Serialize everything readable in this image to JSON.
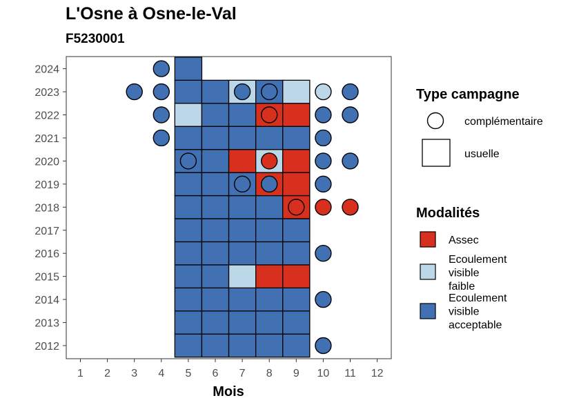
{
  "colors": {
    "Assec": "#d7301f",
    "Ecoulement visible faible": "#bcd7e7",
    "Ecoulement visible acceptable": "#4271b3"
  },
  "chart_data": {
    "type": "heatmap",
    "title": "L'Osne à Osne-le-Val",
    "subtitle": "F5230001",
    "xlabel": "Mois",
    "ylabel": "",
    "x_ticks": [
      1,
      2,
      3,
      4,
      5,
      6,
      7,
      8,
      9,
      10,
      11,
      12
    ],
    "y_ticks": [
      2012,
      2013,
      2014,
      2015,
      2016,
      2017,
      2018,
      2019,
      2020,
      2021,
      2022,
      2023,
      2024
    ],
    "grid": false,
    "legend_position": "right",
    "legend": {
      "shape_title": "Type campagne",
      "shape_entries": [
        "complémentaire",
        "usuelle"
      ],
      "fill_title": "Modalités",
      "fill_entries": [
        {
          "key": "Assec",
          "lines": [
            "Assec"
          ]
        },
        {
          "key": "Ecoulement visible faible",
          "lines": [
            "Ecoulement",
            "visible",
            "faible"
          ]
        },
        {
          "key": "Ecoulement visible acceptable",
          "lines": [
            "Ecoulement",
            "visible",
            "acceptable"
          ]
        }
      ]
    },
    "usuelle": [
      {
        "year": 2012,
        "month": 5,
        "value": "Ecoulement visible acceptable"
      },
      {
        "year": 2012,
        "month": 6,
        "value": "Ecoulement visible acceptable"
      },
      {
        "year": 2012,
        "month": 7,
        "value": "Ecoulement visible acceptable"
      },
      {
        "year": 2012,
        "month": 8,
        "value": "Ecoulement visible acceptable"
      },
      {
        "year": 2012,
        "month": 9,
        "value": "Ecoulement visible acceptable"
      },
      {
        "year": 2013,
        "month": 5,
        "value": "Ecoulement visible acceptable"
      },
      {
        "year": 2013,
        "month": 6,
        "value": "Ecoulement visible acceptable"
      },
      {
        "year": 2013,
        "month": 7,
        "value": "Ecoulement visible acceptable"
      },
      {
        "year": 2013,
        "month": 8,
        "value": "Ecoulement visible acceptable"
      },
      {
        "year": 2013,
        "month": 9,
        "value": "Ecoulement visible acceptable"
      },
      {
        "year": 2014,
        "month": 5,
        "value": "Ecoulement visible acceptable"
      },
      {
        "year": 2014,
        "month": 6,
        "value": "Ecoulement visible acceptable"
      },
      {
        "year": 2014,
        "month": 7,
        "value": "Ecoulement visible acceptable"
      },
      {
        "year": 2014,
        "month": 8,
        "value": "Ecoulement visible acceptable"
      },
      {
        "year": 2014,
        "month": 9,
        "value": "Ecoulement visible acceptable"
      },
      {
        "year": 2015,
        "month": 5,
        "value": "Ecoulement visible acceptable"
      },
      {
        "year": 2015,
        "month": 6,
        "value": "Ecoulement visible acceptable"
      },
      {
        "year": 2015,
        "month": 7,
        "value": "Ecoulement visible faible"
      },
      {
        "year": 2015,
        "month": 8,
        "value": "Assec"
      },
      {
        "year": 2015,
        "month": 9,
        "value": "Assec"
      },
      {
        "year": 2016,
        "month": 5,
        "value": "Ecoulement visible acceptable"
      },
      {
        "year": 2016,
        "month": 6,
        "value": "Ecoulement visible acceptable"
      },
      {
        "year": 2016,
        "month": 7,
        "value": "Ecoulement visible acceptable"
      },
      {
        "year": 2016,
        "month": 8,
        "value": "Ecoulement visible acceptable"
      },
      {
        "year": 2016,
        "month": 9,
        "value": "Ecoulement visible acceptable"
      },
      {
        "year": 2017,
        "month": 5,
        "value": "Ecoulement visible acceptable"
      },
      {
        "year": 2017,
        "month": 6,
        "value": "Ecoulement visible acceptable"
      },
      {
        "year": 2017,
        "month": 7,
        "value": "Ecoulement visible acceptable"
      },
      {
        "year": 2017,
        "month": 8,
        "value": "Ecoulement visible acceptable"
      },
      {
        "year": 2017,
        "month": 9,
        "value": "Ecoulement visible acceptable"
      },
      {
        "year": 2018,
        "month": 5,
        "value": "Ecoulement visible acceptable"
      },
      {
        "year": 2018,
        "month": 6,
        "value": "Ecoulement visible acceptable"
      },
      {
        "year": 2018,
        "month": 7,
        "value": "Ecoulement visible acceptable"
      },
      {
        "year": 2018,
        "month": 8,
        "value": "Ecoulement visible acceptable"
      },
      {
        "year": 2018,
        "month": 9,
        "value": "Assec"
      },
      {
        "year": 2019,
        "month": 5,
        "value": "Ecoulement visible acceptable"
      },
      {
        "year": 2019,
        "month": 6,
        "value": "Ecoulement visible acceptable"
      },
      {
        "year": 2019,
        "month": 7,
        "value": "Ecoulement visible acceptable"
      },
      {
        "year": 2019,
        "month": 8,
        "value": "Assec"
      },
      {
        "year": 2019,
        "month": 9,
        "value": "Assec"
      },
      {
        "year": 2020,
        "month": 5,
        "value": "Ecoulement visible acceptable"
      },
      {
        "year": 2020,
        "month": 6,
        "value": "Ecoulement visible acceptable"
      },
      {
        "year": 2020,
        "month": 7,
        "value": "Assec"
      },
      {
        "year": 2020,
        "month": 8,
        "value": "Ecoulement visible faible"
      },
      {
        "year": 2020,
        "month": 9,
        "value": "Assec"
      },
      {
        "year": 2021,
        "month": 5,
        "value": "Ecoulement visible acceptable"
      },
      {
        "year": 2021,
        "month": 6,
        "value": "Ecoulement visible acceptable"
      },
      {
        "year": 2021,
        "month": 7,
        "value": "Ecoulement visible acceptable"
      },
      {
        "year": 2021,
        "month": 8,
        "value": "Ecoulement visible acceptable"
      },
      {
        "year": 2021,
        "month": 9,
        "value": "Ecoulement visible acceptable"
      },
      {
        "year": 2022,
        "month": 5,
        "value": "Ecoulement visible faible"
      },
      {
        "year": 2022,
        "month": 6,
        "value": "Ecoulement visible acceptable"
      },
      {
        "year": 2022,
        "month": 7,
        "value": "Ecoulement visible acceptable"
      },
      {
        "year": 2022,
        "month": 8,
        "value": "Assec"
      },
      {
        "year": 2022,
        "month": 9,
        "value": "Assec"
      },
      {
        "year": 2023,
        "month": 5,
        "value": "Ecoulement visible acceptable"
      },
      {
        "year": 2023,
        "month": 6,
        "value": "Ecoulement visible acceptable"
      },
      {
        "year": 2023,
        "month": 7,
        "value": "Ecoulement visible faible"
      },
      {
        "year": 2023,
        "month": 8,
        "value": "Ecoulement visible acceptable"
      },
      {
        "year": 2023,
        "month": 9,
        "value": "Ecoulement visible faible"
      },
      {
        "year": 2024,
        "month": 5,
        "value": "Ecoulement visible acceptable"
      }
    ],
    "complementaire": [
      {
        "year": 2012,
        "month": 10,
        "value": "Ecoulement visible acceptable"
      },
      {
        "year": 2014,
        "month": 10,
        "value": "Ecoulement visible acceptable"
      },
      {
        "year": 2016,
        "month": 10,
        "value": "Ecoulement visible acceptable"
      },
      {
        "year": 2018,
        "month": 9,
        "value": "Assec"
      },
      {
        "year": 2018,
        "month": 10,
        "value": "Assec"
      },
      {
        "year": 2018,
        "month": 11,
        "value": "Assec"
      },
      {
        "year": 2019,
        "month": 7,
        "value": "Ecoulement visible acceptable"
      },
      {
        "year": 2019,
        "month": 8,
        "value": "Ecoulement visible acceptable"
      },
      {
        "year": 2019,
        "month": 10,
        "value": "Ecoulement visible acceptable"
      },
      {
        "year": 2020,
        "month": 5,
        "value": "Ecoulement visible acceptable"
      },
      {
        "year": 2020,
        "month": 8,
        "value": "Assec"
      },
      {
        "year": 2020,
        "month": 10,
        "value": "Ecoulement visible acceptable"
      },
      {
        "year": 2020,
        "month": 11,
        "value": "Ecoulement visible acceptable"
      },
      {
        "year": 2021,
        "month": 4,
        "value": "Ecoulement visible acceptable"
      },
      {
        "year": 2021,
        "month": 10,
        "value": "Ecoulement visible acceptable"
      },
      {
        "year": 2022,
        "month": 4,
        "value": "Ecoulement visible acceptable"
      },
      {
        "year": 2022,
        "month": 8,
        "value": "Assec"
      },
      {
        "year": 2022,
        "month": 10,
        "value": "Ecoulement visible acceptable"
      },
      {
        "year": 2022,
        "month": 11,
        "value": "Ecoulement visible acceptable"
      },
      {
        "year": 2023,
        "month": 3,
        "value": "Ecoulement visible acceptable"
      },
      {
        "year": 2023,
        "month": 4,
        "value": "Ecoulement visible acceptable"
      },
      {
        "year": 2023,
        "month": 7,
        "value": "Ecoulement visible acceptable"
      },
      {
        "year": 2023,
        "month": 8,
        "value": "Ecoulement visible acceptable"
      },
      {
        "year": 2023,
        "month": 10,
        "value": "Ecoulement visible faible"
      },
      {
        "year": 2023,
        "month": 11,
        "value": "Ecoulement visible acceptable"
      },
      {
        "year": 2024,
        "month": 4,
        "value": "Ecoulement visible acceptable"
      }
    ]
  }
}
